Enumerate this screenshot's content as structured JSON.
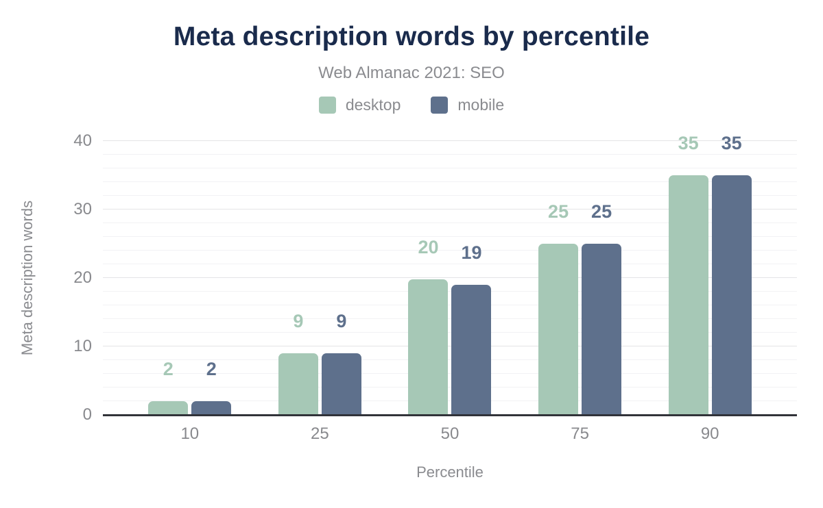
{
  "chart_data": {
    "type": "bar",
    "title": "Meta description words by percentile",
    "subtitle": "Web Almanac 2021: SEO",
    "categories": [
      "10",
      "25",
      "50",
      "75",
      "90"
    ],
    "series": [
      {
        "name": "desktop",
        "color": "#a6c8b6",
        "values": [
          2,
          9,
          19.8,
          25,
          35
        ],
        "labels": [
          "2",
          "9",
          "20",
          "25",
          "35"
        ]
      },
      {
        "name": "mobile",
        "color": "#5e708c",
        "values": [
          2,
          9,
          19,
          25,
          35
        ],
        "labels": [
          "2",
          "9",
          "19",
          "25",
          "35"
        ]
      }
    ],
    "xlabel": "Percentile",
    "ylabel": "Meta description words",
    "ylim": [
      0,
      40
    ],
    "yticks": [
      0,
      10,
      20,
      30,
      40
    ],
    "minor_grid_step": 2,
    "grid": true,
    "legend_position": "top"
  },
  "colors": {
    "title": "#1a2b4c",
    "muted_text": "#8a8b8f",
    "grid_major": "#e4e4e6",
    "grid_minor": "#f2f2f4",
    "axis_line": "#313339",
    "background": "#ffffff"
  }
}
